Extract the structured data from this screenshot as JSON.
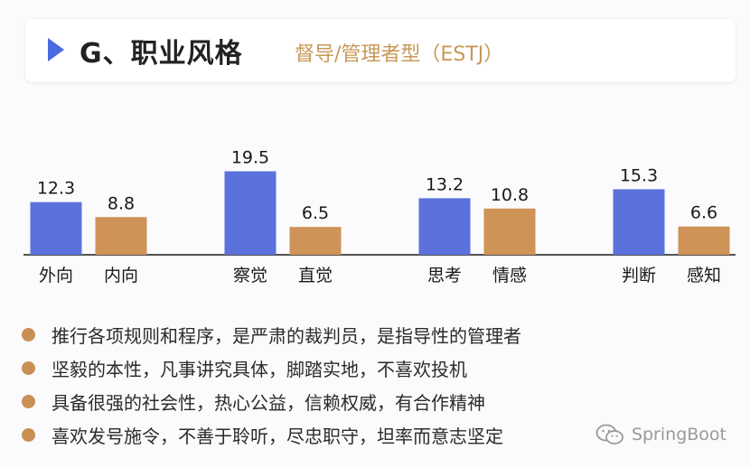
{
  "header": {
    "title": "G、职业风格",
    "subtitle": "督导/管理者型（ESTJ）"
  },
  "colors": {
    "accent": "#4a6ae0",
    "bar_primary": "#5b72dc",
    "bar_secondary": "#cf9257",
    "subtitle": "#c89857"
  },
  "chart_data": {
    "type": "bar",
    "categories": [
      "外向",
      "内向",
      "察觉",
      "直觉",
      "思考",
      "情感",
      "判断",
      "感知"
    ],
    "values": [
      12.3,
      8.8,
      19.5,
      6.5,
      13.2,
      10.8,
      15.3,
      6.6
    ],
    "value_labels": [
      "12.3",
      "8.8",
      "19.5",
      "6.5",
      "13.2",
      "10.8",
      "15.3",
      "6.6"
    ],
    "groups": [
      {
        "categories": [
          "外向",
          "内向"
        ]
      },
      {
        "categories": [
          "察觉",
          "直觉"
        ]
      },
      {
        "categories": [
          "思考",
          "情感"
        ]
      },
      {
        "categories": [
          "判断",
          "感知"
        ]
      }
    ],
    "title": "",
    "xlabel": "",
    "ylabel": "",
    "ylim": [
      0,
      20
    ],
    "grid": false,
    "legend": "none"
  },
  "traits": [
    "推行各项规则和程序，是严肃的裁判员，是指导性的管理者",
    "坚毅的本性，凡事讲究具体，脚踏实地，不喜欢投机",
    "具备很强的社会性，热心公益，信赖权威，有合作精神",
    "喜欢发号施令，不善于聆听，尽忠职守，坦率而意志坚定"
  ],
  "watermark": {
    "icon": "wechat-icon",
    "text": "SpringBoot"
  }
}
